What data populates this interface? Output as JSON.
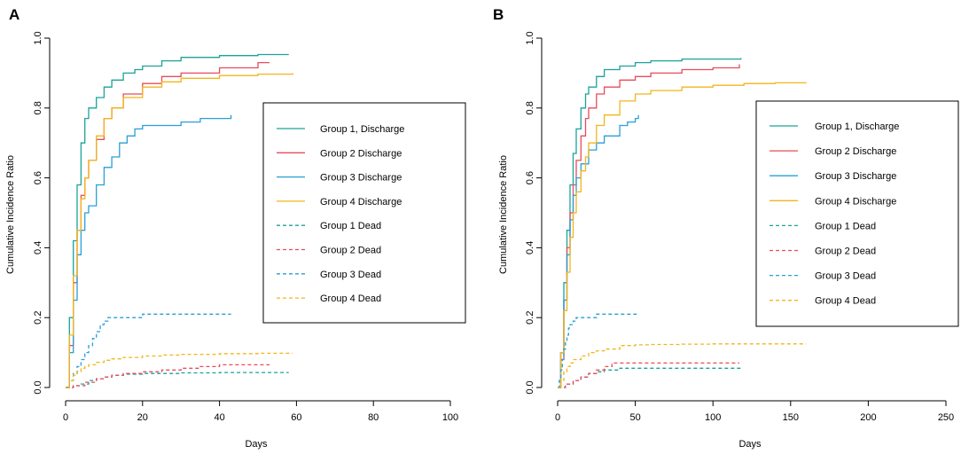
{
  "chart_data": [
    {
      "panel_label": "A",
      "type": "line",
      "xlabel": "Days",
      "ylabel": "Cumulative Incidence Ratio",
      "xlim": [
        0,
        100
      ],
      "ylim": [
        0,
        1
      ],
      "xticks": [
        0,
        20,
        40,
        60,
        80,
        100
      ],
      "yticks": [
        0.0,
        0.2,
        0.4,
        0.6,
        0.8,
        1.0
      ],
      "legend_position": "right",
      "series": [
        {
          "name": "Group 1, Discharge",
          "color": "#1aa39a",
          "style": "solid",
          "x": [
            0,
            1,
            2,
            3,
            4,
            5,
            6,
            8,
            10,
            12,
            15,
            18,
            20,
            25,
            30,
            40,
            50,
            58
          ],
          "y": [
            0,
            0.2,
            0.42,
            0.58,
            0.7,
            0.77,
            0.8,
            0.83,
            0.86,
            0.88,
            0.9,
            0.91,
            0.92,
            0.935,
            0.945,
            0.95,
            0.953,
            0.953
          ]
        },
        {
          "name": "Group 2 Discharge",
          "color": "#e84c5a",
          "style": "solid",
          "x": [
            0,
            1,
            2,
            3,
            4,
            5,
            6,
            8,
            10,
            12,
            15,
            20,
            25,
            30,
            40,
            50,
            53
          ],
          "y": [
            0,
            0.12,
            0.3,
            0.45,
            0.55,
            0.6,
            0.65,
            0.71,
            0.77,
            0.8,
            0.84,
            0.87,
            0.89,
            0.9,
            0.915,
            0.93,
            0.93
          ]
        },
        {
          "name": "Group 3 Discharge",
          "color": "#2a9fd6",
          "style": "solid",
          "x": [
            0,
            1,
            2,
            3,
            4,
            5,
            6,
            8,
            10,
            12,
            14,
            16,
            18,
            20,
            25,
            30,
            35,
            43
          ],
          "y": [
            0,
            0.1,
            0.25,
            0.38,
            0.45,
            0.5,
            0.52,
            0.58,
            0.63,
            0.66,
            0.7,
            0.72,
            0.74,
            0.75,
            0.75,
            0.76,
            0.77,
            0.78
          ]
        },
        {
          "name": "Group 4 Discharge",
          "color": "#f2b51c",
          "style": "solid",
          "x": [
            0,
            1,
            2,
            3,
            4,
            5,
            6,
            8,
            10,
            12,
            15,
            20,
            25,
            30,
            40,
            50,
            59
          ],
          "y": [
            0,
            0.15,
            0.32,
            0.45,
            0.54,
            0.6,
            0.65,
            0.72,
            0.77,
            0.8,
            0.83,
            0.86,
            0.875,
            0.885,
            0.893,
            0.897,
            0.9
          ]
        },
        {
          "name": "Group 1 Dead",
          "color": "#1aa39a",
          "style": "dashed",
          "x": [
            0,
            2,
            4,
            6,
            8,
            10,
            12,
            15,
            20,
            25,
            30,
            40,
            50,
            58
          ],
          "y": [
            0,
            0.005,
            0.01,
            0.02,
            0.025,
            0.03,
            0.035,
            0.038,
            0.04,
            0.04,
            0.042,
            0.043,
            0.043,
            0.043
          ]
        },
        {
          "name": "Group 2 Dead",
          "color": "#e84c5a",
          "style": "dashed",
          "x": [
            0,
            2,
            5,
            8,
            10,
            12,
            15,
            20,
            25,
            30,
            35,
            40,
            53
          ],
          "y": [
            0,
            0.005,
            0.015,
            0.025,
            0.03,
            0.035,
            0.04,
            0.045,
            0.05,
            0.055,
            0.06,
            0.065,
            0.065
          ]
        },
        {
          "name": "Group 3 Dead",
          "color": "#2a9fd6",
          "style": "dashed",
          "x": [
            0,
            1,
            2,
            3,
            4,
            5,
            6,
            7,
            8,
            9,
            10,
            11,
            15,
            20,
            25,
            30,
            35,
            43
          ],
          "y": [
            0,
            0.02,
            0.04,
            0.06,
            0.08,
            0.1,
            0.12,
            0.14,
            0.16,
            0.18,
            0.19,
            0.2,
            0.2,
            0.21,
            0.21,
            0.21,
            0.21,
            0.21
          ]
        },
        {
          "name": "Group 4 Dead",
          "color": "#f2b51c",
          "style": "dashed",
          "x": [
            0,
            1,
            2,
            3,
            4,
            5,
            6,
            8,
            10,
            12,
            15,
            20,
            25,
            30,
            40,
            50,
            59
          ],
          "y": [
            0,
            0.02,
            0.035,
            0.045,
            0.055,
            0.06,
            0.065,
            0.072,
            0.078,
            0.082,
            0.086,
            0.09,
            0.093,
            0.095,
            0.097,
            0.098,
            0.098
          ]
        }
      ]
    },
    {
      "panel_label": "B",
      "type": "line",
      "xlabel": "Days",
      "ylabel": "Cumulative Incidence Ratio",
      "xlim": [
        0,
        250
      ],
      "ylim": [
        0,
        1
      ],
      "xticks": [
        0,
        50,
        100,
        150,
        200,
        250
      ],
      "yticks": [
        0.0,
        0.2,
        0.4,
        0.6,
        0.8,
        1.0
      ],
      "legend_position": "right",
      "series": [
        {
          "name": "Group 1, Discharge",
          "color": "#1aa39a",
          "style": "solid",
          "x": [
            0,
            2,
            4,
            6,
            8,
            10,
            12,
            15,
            18,
            20,
            25,
            30,
            40,
            50,
            60,
            80,
            100,
            118
          ],
          "y": [
            0,
            0.1,
            0.3,
            0.45,
            0.58,
            0.67,
            0.74,
            0.8,
            0.84,
            0.86,
            0.89,
            0.91,
            0.92,
            0.93,
            0.935,
            0.94,
            0.94,
            0.943
          ]
        },
        {
          "name": "Group 2 Discharge",
          "color": "#e84c5a",
          "style": "solid",
          "x": [
            0,
            2,
            4,
            6,
            8,
            10,
            12,
            15,
            18,
            20,
            25,
            30,
            40,
            50,
            60,
            80,
            100,
            117
          ],
          "y": [
            0,
            0.08,
            0.25,
            0.4,
            0.5,
            0.58,
            0.65,
            0.72,
            0.77,
            0.8,
            0.84,
            0.86,
            0.88,
            0.89,
            0.9,
            0.91,
            0.915,
            0.925
          ]
        },
        {
          "name": "Group 3 Discharge",
          "color": "#2a9fd6",
          "style": "solid",
          "x": [
            0,
            2,
            4,
            6,
            8,
            10,
            12,
            15,
            20,
            25,
            30,
            35,
            40,
            45,
            50,
            52
          ],
          "y": [
            0,
            0.1,
            0.25,
            0.38,
            0.48,
            0.55,
            0.6,
            0.64,
            0.68,
            0.7,
            0.72,
            0.72,
            0.75,
            0.76,
            0.77,
            0.78
          ]
        },
        {
          "name": "Group 4 Discharge",
          "color": "#f2b51c",
          "style": "solid",
          "x": [
            0,
            2,
            4,
            6,
            8,
            10,
            12,
            15,
            18,
            20,
            25,
            30,
            40,
            50,
            60,
            80,
            100,
            120,
            140,
            160
          ],
          "y": [
            0,
            0.1,
            0.22,
            0.33,
            0.43,
            0.5,
            0.56,
            0.62,
            0.66,
            0.7,
            0.75,
            0.78,
            0.82,
            0.84,
            0.85,
            0.86,
            0.865,
            0.87,
            0.872,
            0.873
          ]
        },
        {
          "name": "Group 1 Dead",
          "color": "#1aa39a",
          "style": "dashed",
          "x": [
            0,
            5,
            10,
            15,
            20,
            25,
            30,
            40,
            50,
            60,
            80,
            100,
            118
          ],
          "y": [
            0,
            0.01,
            0.02,
            0.03,
            0.04,
            0.045,
            0.05,
            0.055,
            0.055,
            0.055,
            0.055,
            0.055,
            0.055
          ]
        },
        {
          "name": "Group 2 Dead",
          "color": "#e84c5a",
          "style": "dashed",
          "x": [
            0,
            5,
            10,
            15,
            20,
            25,
            30,
            35,
            40,
            50,
            60,
            80,
            100,
            117
          ],
          "y": [
            0,
            0.01,
            0.02,
            0.03,
            0.04,
            0.05,
            0.06,
            0.07,
            0.07,
            0.07,
            0.07,
            0.07,
            0.07,
            0.07
          ]
        },
        {
          "name": "Group 3 Dead",
          "color": "#2a9fd6",
          "style": "dashed",
          "x": [
            0,
            1,
            2,
            3,
            4,
            5,
            6,
            7,
            8,
            10,
            12,
            15,
            20,
            25,
            30,
            40,
            52
          ],
          "y": [
            0,
            0.02,
            0.05,
            0.08,
            0.11,
            0.13,
            0.15,
            0.17,
            0.18,
            0.19,
            0.2,
            0.2,
            0.2,
            0.21,
            0.21,
            0.21,
            0.21
          ]
        },
        {
          "name": "Group 4 Dead",
          "color": "#f2b51c",
          "style": "dashed",
          "x": [
            0,
            2,
            4,
            6,
            8,
            10,
            15,
            20,
            25,
            30,
            40,
            50,
            60,
            80,
            100,
            120,
            140,
            160
          ],
          "y": [
            0,
            0.02,
            0.045,
            0.06,
            0.07,
            0.08,
            0.09,
            0.1,
            0.105,
            0.11,
            0.12,
            0.122,
            0.123,
            0.124,
            0.125,
            0.125,
            0.125,
            0.125
          ]
        }
      ]
    }
  ]
}
